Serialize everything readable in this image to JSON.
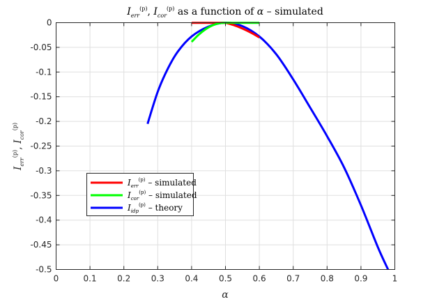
{
  "chart_data": {
    "type": "line",
    "title": "I_err^(p), I_cor^(p) as a function of α – simulated",
    "xlabel": "α",
    "ylabel": "I_err^(p), I_cor^(p)",
    "xlim": [
      0,
      1
    ],
    "ylim": [
      -0.5,
      0
    ],
    "x_ticks": [
      "0",
      "0.1",
      "0.2",
      "0.3",
      "0.4",
      "0.5",
      "0.6",
      "0.7",
      "0.8",
      "0.9",
      "1"
    ],
    "y_ticks": [
      "0",
      "-0.05",
      "-0.1",
      "-0.15",
      "-0.2",
      "-0.25",
      "-0.3",
      "-0.35",
      "-0.4",
      "-0.45",
      "-0.5"
    ],
    "grid": true,
    "legend_position": "bottom-left",
    "series": [
      {
        "name": "I_err^(p) – simulated",
        "color": "#ff0000",
        "x": [
          0.4,
          0.42,
          0.44,
          0.46,
          0.48,
          0.5,
          0.52,
          0.54,
          0.56,
          0.58,
          0.6
        ],
        "y": [
          -0.0003,
          -0.0003,
          -0.0003,
          -0.0003,
          -0.0003,
          -0.0005,
          -0.004,
          -0.009,
          -0.015,
          -0.022,
          -0.03
        ]
      },
      {
        "name": "I_cor^(p) – simulated",
        "color": "#00ff00",
        "x": [
          0.4,
          0.42,
          0.44,
          0.46,
          0.48,
          0.5,
          0.52,
          0.54,
          0.56,
          0.58,
          0.6
        ],
        "y": [
          -0.039,
          -0.025,
          -0.014,
          -0.006,
          -0.0015,
          -0.0003,
          -0.0003,
          -0.0003,
          -0.0003,
          -0.0003,
          -0.0003
        ]
      },
      {
        "name": "I_idp^(p) – theory",
        "color": "#0000ff",
        "x": [
          0.27,
          0.3,
          0.33,
          0.36,
          0.4,
          0.45,
          0.5,
          0.55,
          0.6,
          0.65,
          0.7,
          0.75,
          0.8,
          0.85,
          0.9,
          0.95,
          0.98
        ],
        "y": [
          -0.205,
          -0.14,
          -0.093,
          -0.058,
          -0.028,
          -0.008,
          0,
          -0.007,
          -0.028,
          -0.064,
          -0.115,
          -0.172,
          -0.23,
          -0.293,
          -0.37,
          -0.455,
          -0.5
        ]
      }
    ]
  }
}
